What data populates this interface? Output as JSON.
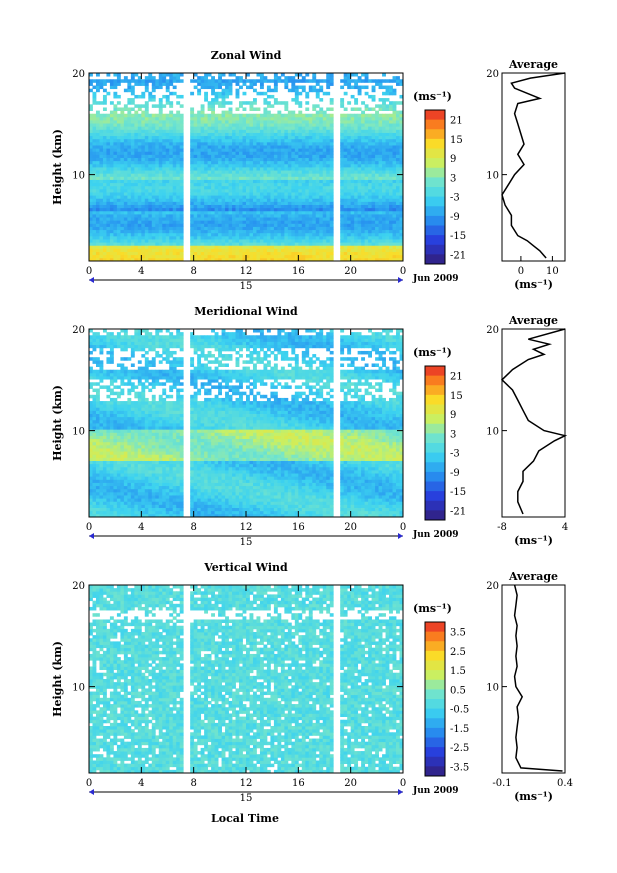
{
  "figure": {
    "xlabel": "Local Time",
    "date_label": "Jun 2009",
    "day_label": "15"
  },
  "chart_data": [
    {
      "type": "heatmap",
      "title": "Zonal Wind",
      "ylabel": "Height (km)",
      "xlabel": "Local Time",
      "x_ticks": [
        "0",
        "4",
        "8",
        "12",
        "16",
        "20",
        "0"
      ],
      "xlim": [
        0,
        24
      ],
      "y_ticks": [
        "10",
        "20"
      ],
      "ylim": [
        1.5,
        20
      ],
      "colorbar": {
        "unit": "(ms⁻¹)",
        "ticks": [
          "21",
          "15",
          "9",
          "3",
          "-3",
          "-9",
          "-15",
          "-21"
        ],
        "range": [
          -24,
          24
        ]
      },
      "avg_profile": {
        "title": "Average",
        "xlabel": "(ms⁻¹)",
        "x_ticks": [
          "0",
          "10"
        ],
        "xlim": [
          -6,
          14
        ],
        "y_ticks": [
          "10",
          "20"
        ],
        "height_km": [
          1.8,
          2.5,
          3,
          3.5,
          4,
          5,
          6,
          7,
          8,
          9,
          10,
          11,
          12,
          13,
          14,
          15,
          16,
          17,
          17.5,
          18,
          18.5,
          19,
          19.5,
          20
        ],
        "value": [
          8,
          6,
          4,
          2,
          -1,
          -3,
          -3,
          -5,
          -6,
          -4,
          -2,
          1,
          -1,
          1,
          0,
          -1,
          -2,
          -1,
          6,
          2,
          -2,
          -3,
          3,
          14
        ]
      }
    },
    {
      "type": "heatmap",
      "title": "Meridional Wind",
      "ylabel": "Height (km)",
      "xlabel": "Local Time",
      "x_ticks": [
        "0",
        "4",
        "8",
        "12",
        "16",
        "20",
        "0"
      ],
      "xlim": [
        0,
        24
      ],
      "y_ticks": [
        "10",
        "20"
      ],
      "ylim": [
        1.5,
        20
      ],
      "colorbar": {
        "unit": "(ms⁻¹)",
        "ticks": [
          "21",
          "15",
          "9",
          "3",
          "-3",
          "-9",
          "-15",
          "-21"
        ],
        "range": [
          -24,
          24
        ]
      },
      "avg_profile": {
        "title": "Average",
        "xlabel": "(ms⁻¹)",
        "x_ticks": [
          "-8",
          "4"
        ],
        "xlim": [
          -8,
          4
        ],
        "y_ticks": [
          "10",
          "20"
        ],
        "height_km": [
          1.8,
          3,
          4,
          5,
          6,
          7,
          8,
          9,
          9.5,
          10,
          11,
          12,
          13,
          14,
          15,
          15.5,
          16,
          17,
          17.5,
          18,
          18.5,
          19,
          20
        ],
        "value": [
          -4,
          -5,
          -5,
          -4,
          -4,
          -2,
          -1,
          2,
          4,
          0,
          -3,
          -4,
          -5,
          -6,
          -8,
          -7,
          -6,
          -3,
          0,
          -2,
          1,
          -3,
          4
        ]
      }
    },
    {
      "type": "heatmap",
      "title": "Vertical Wind",
      "ylabel": "Height (km)",
      "xlabel": "Local Time",
      "x_ticks": [
        "0",
        "4",
        "8",
        "12",
        "16",
        "20",
        "0"
      ],
      "xlim": [
        0,
        24
      ],
      "y_ticks": [
        "10",
        "20"
      ],
      "ylim": [
        1.5,
        20
      ],
      "colorbar": {
        "unit": "(ms⁻¹)",
        "ticks": [
          "3.5",
          "2.5",
          "1.5",
          "0.5",
          "-0.5",
          "-1.5",
          "-2.5",
          "-3.5"
        ],
        "range": [
          -4,
          4
        ]
      },
      "avg_profile": {
        "title": "Average",
        "xlabel": "(ms⁻¹)",
        "x_ticks": [
          "-0.1",
          "0.4"
        ],
        "xlim": [
          -0.1,
          0.4
        ],
        "y_ticks": [
          "10",
          "20"
        ],
        "height_km": [
          1.7,
          2,
          3,
          4,
          5,
          6,
          7,
          8,
          9,
          10,
          11,
          12,
          13,
          14,
          15,
          16,
          17,
          18,
          19,
          20
        ],
        "value": [
          0.38,
          0.05,
          0.01,
          0.02,
          0.01,
          0.02,
          0.03,
          0.02,
          0.06,
          0.01,
          0.0,
          0.02,
          0.01,
          0.02,
          0.01,
          0.02,
          0.0,
          0.01,
          0.02,
          0.0
        ]
      }
    }
  ]
}
